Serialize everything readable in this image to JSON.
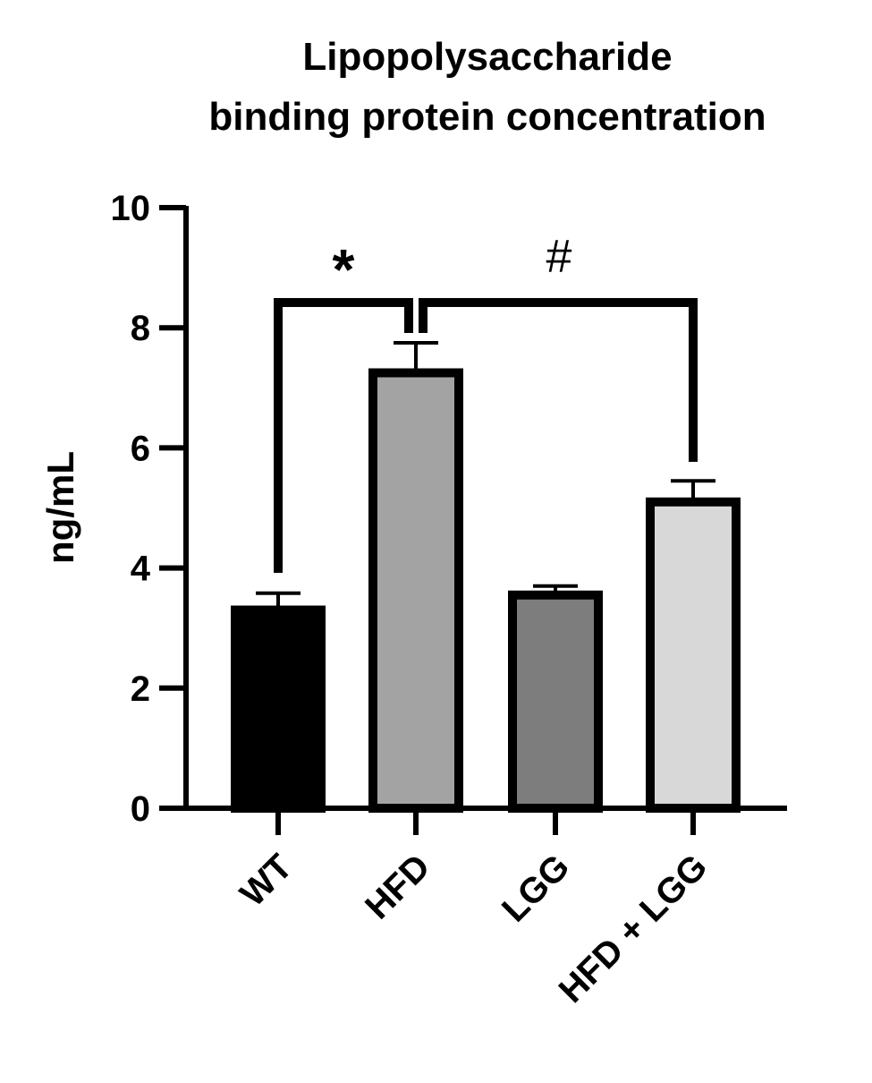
{
  "chart_data": {
    "type": "bar",
    "title": [
      "Lipopolysaccharide",
      "binding protein concentration"
    ],
    "xlabel": "",
    "ylabel": "ng/mL",
    "ylim": [
      0,
      10
    ],
    "yticks": [
      0,
      2,
      4,
      6,
      8,
      10
    ],
    "categories": [
      "WT",
      "HFD",
      "LGG",
      "HFD + LGG"
    ],
    "values": [
      3.3,
      7.25,
      3.55,
      5.1
    ],
    "errors": [
      0.28,
      0.5,
      0.15,
      0.35
    ],
    "bar_colors": [
      "#000000",
      "#a3a3a3",
      "#7d7d7d",
      "#d8d8d8"
    ],
    "significance": [
      {
        "from": "WT",
        "to": "HFD",
        "symbol": "*"
      },
      {
        "from": "HFD",
        "to": "HFD + LGG",
        "symbol": "#"
      }
    ],
    "grid": false,
    "legend": "none"
  }
}
